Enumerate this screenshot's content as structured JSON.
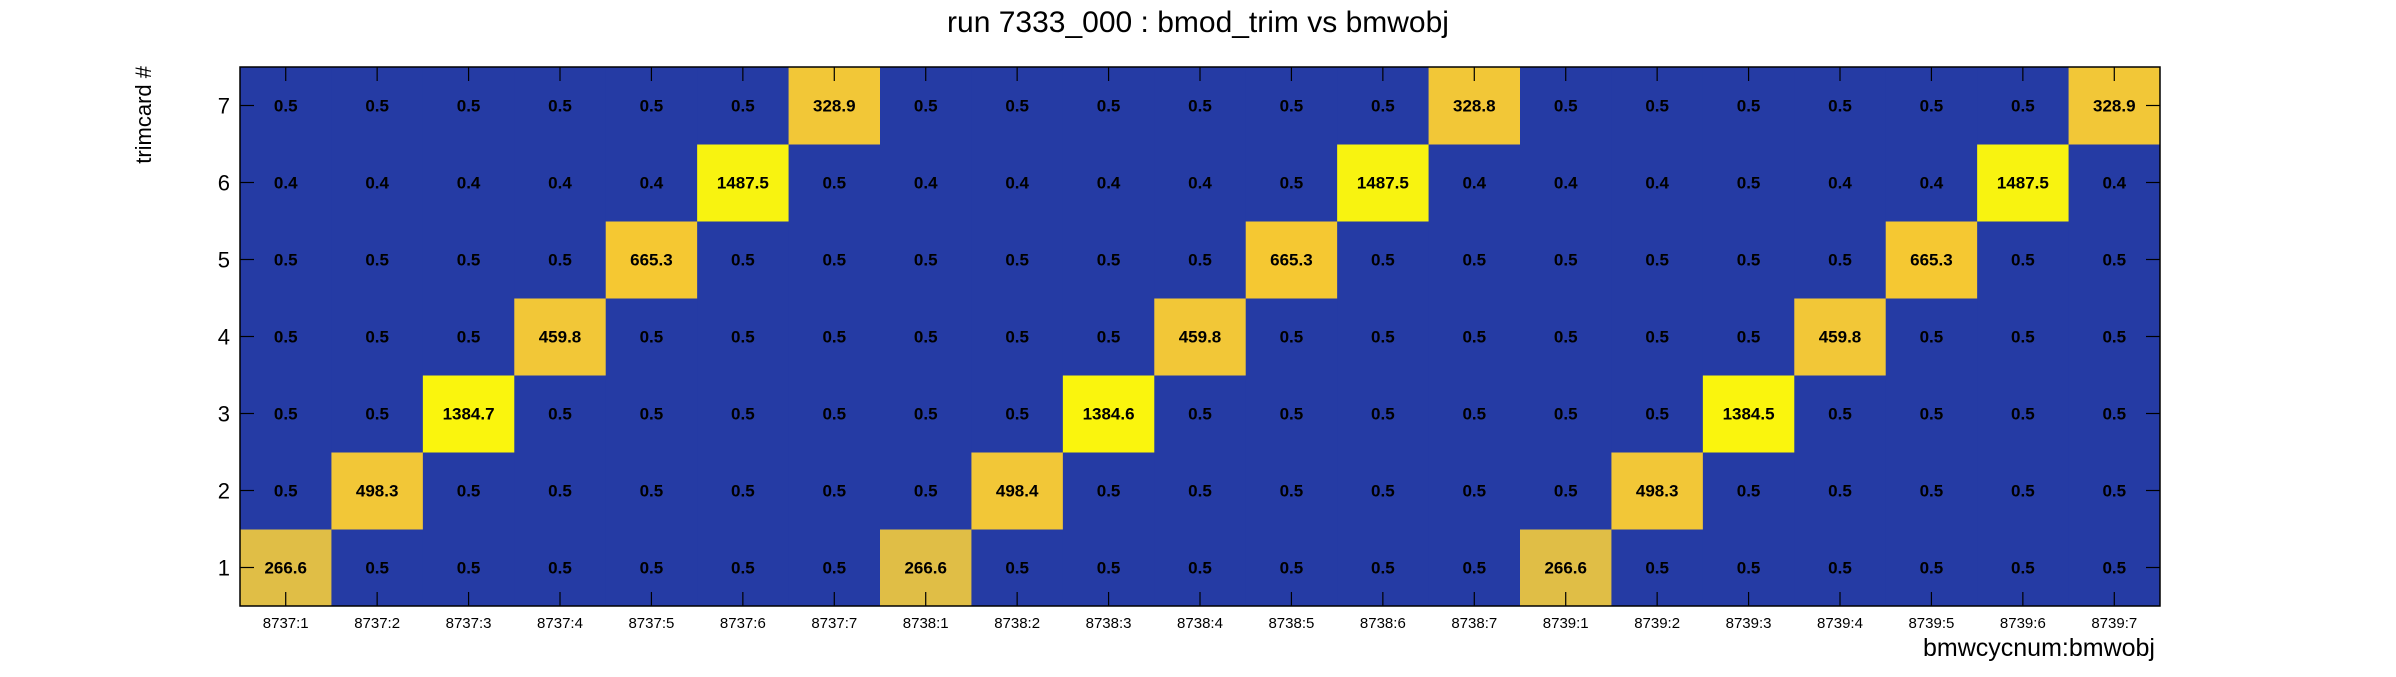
{
  "chart_data": {
    "type": "heatmap",
    "title": "run 7333_000 : bmod_trim vs bmwobj",
    "xlabel": "bmwcycnum:bmwobj",
    "ylabel": "trimcard #",
    "x_categories": [
      "8737:1",
      "8737:2",
      "8737:3",
      "8737:4",
      "8737:5",
      "8737:6",
      "8737:7",
      "8738:1",
      "8738:2",
      "8738:3",
      "8738:4",
      "8738:5",
      "8738:6",
      "8738:7",
      "8739:1",
      "8739:2",
      "8739:3",
      "8739:4",
      "8739:5",
      "8739:6",
      "8739:7"
    ],
    "y_categories": [
      "1",
      "2",
      "3",
      "4",
      "5",
      "6",
      "7"
    ],
    "values": [
      [
        266.6,
        0.5,
        0.5,
        0.5,
        0.5,
        0.5,
        0.5,
        266.6,
        0.5,
        0.5,
        0.5,
        0.5,
        0.5,
        0.5,
        266.6,
        0.5,
        0.5,
        0.5,
        0.5,
        0.5,
        0.5
      ],
      [
        0.5,
        498.3,
        0.5,
        0.5,
        0.5,
        0.5,
        0.5,
        0.5,
        498.4,
        0.5,
        0.5,
        0.5,
        0.5,
        0.5,
        0.5,
        498.3,
        0.5,
        0.5,
        0.5,
        0.5,
        0.5
      ],
      [
        0.5,
        0.5,
        1384.7,
        0.5,
        0.5,
        0.5,
        0.5,
        0.5,
        0.5,
        1384.6,
        0.5,
        0.5,
        0.5,
        0.5,
        0.5,
        0.5,
        1384.5,
        0.5,
        0.5,
        0.5,
        0.5
      ],
      [
        0.5,
        0.5,
        0.5,
        459.8,
        0.5,
        0.5,
        0.5,
        0.5,
        0.5,
        0.5,
        459.8,
        0.5,
        0.5,
        0.5,
        0.5,
        0.5,
        0.5,
        459.8,
        0.5,
        0.5,
        0.5
      ],
      [
        0.5,
        0.5,
        0.5,
        0.5,
        665.3,
        0.5,
        0.5,
        0.5,
        0.5,
        0.5,
        0.5,
        665.3,
        0.5,
        0.5,
        0.5,
        0.5,
        0.5,
        0.5,
        665.3,
        0.5,
        0.5
      ],
      [
        0.4,
        0.4,
        0.4,
        0.4,
        0.4,
        1487.5,
        0.5,
        0.4,
        0.4,
        0.4,
        0.4,
        0.5,
        1487.5,
        0.4,
        0.4,
        0.4,
        0.5,
        0.4,
        0.4,
        1487.5,
        0.4
      ],
      [
        0.5,
        0.5,
        0.5,
        0.5,
        0.5,
        0.5,
        328.9,
        0.5,
        0.5,
        0.5,
        0.5,
        0.5,
        0.5,
        328.8,
        0.5,
        0.5,
        0.5,
        0.5,
        0.5,
        0.5,
        328.9
      ]
    ],
    "grid": false,
    "legend": "none",
    "colors": {
      "low": "#253ba4",
      "scale": [
        {
          "max": 300,
          "color": "#e0be46"
        },
        {
          "max": 550,
          "color": "#f2c737"
        },
        {
          "max": 700,
          "color": "#f5c832"
        },
        {
          "max": 1000,
          "color": "#f3d22a"
        },
        {
          "max": 1450,
          "color": "#faf50d"
        },
        {
          "max": 99999,
          "color": "#f8f310"
        }
      ],
      "frame": "#000000",
      "text": "#000000"
    }
  }
}
